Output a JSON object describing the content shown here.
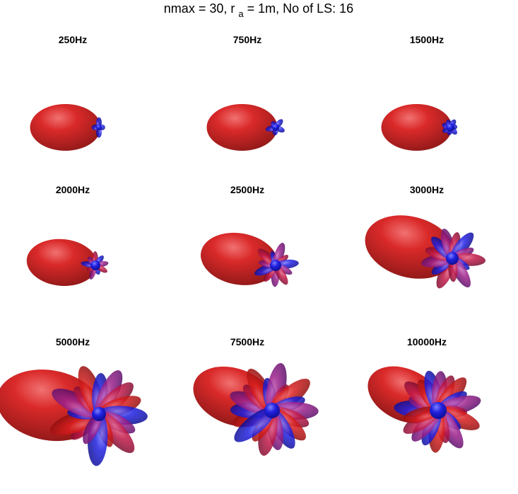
{
  "header": {
    "title_before": "nmax = 30, r",
    "title_subscript": "a",
    "title_after": "= 1m, No of LS: 16"
  },
  "panels": [
    {
      "label": "250Hz"
    },
    {
      "label": "750Hz"
    },
    {
      "label": "1500Hz"
    },
    {
      "label": "2000Hz"
    },
    {
      "label": "2500Hz"
    },
    {
      "label": "3000Hz"
    },
    {
      "label": "5000Hz"
    },
    {
      "label": "7500Hz"
    },
    {
      "label": "10000Hz"
    }
  ]
}
